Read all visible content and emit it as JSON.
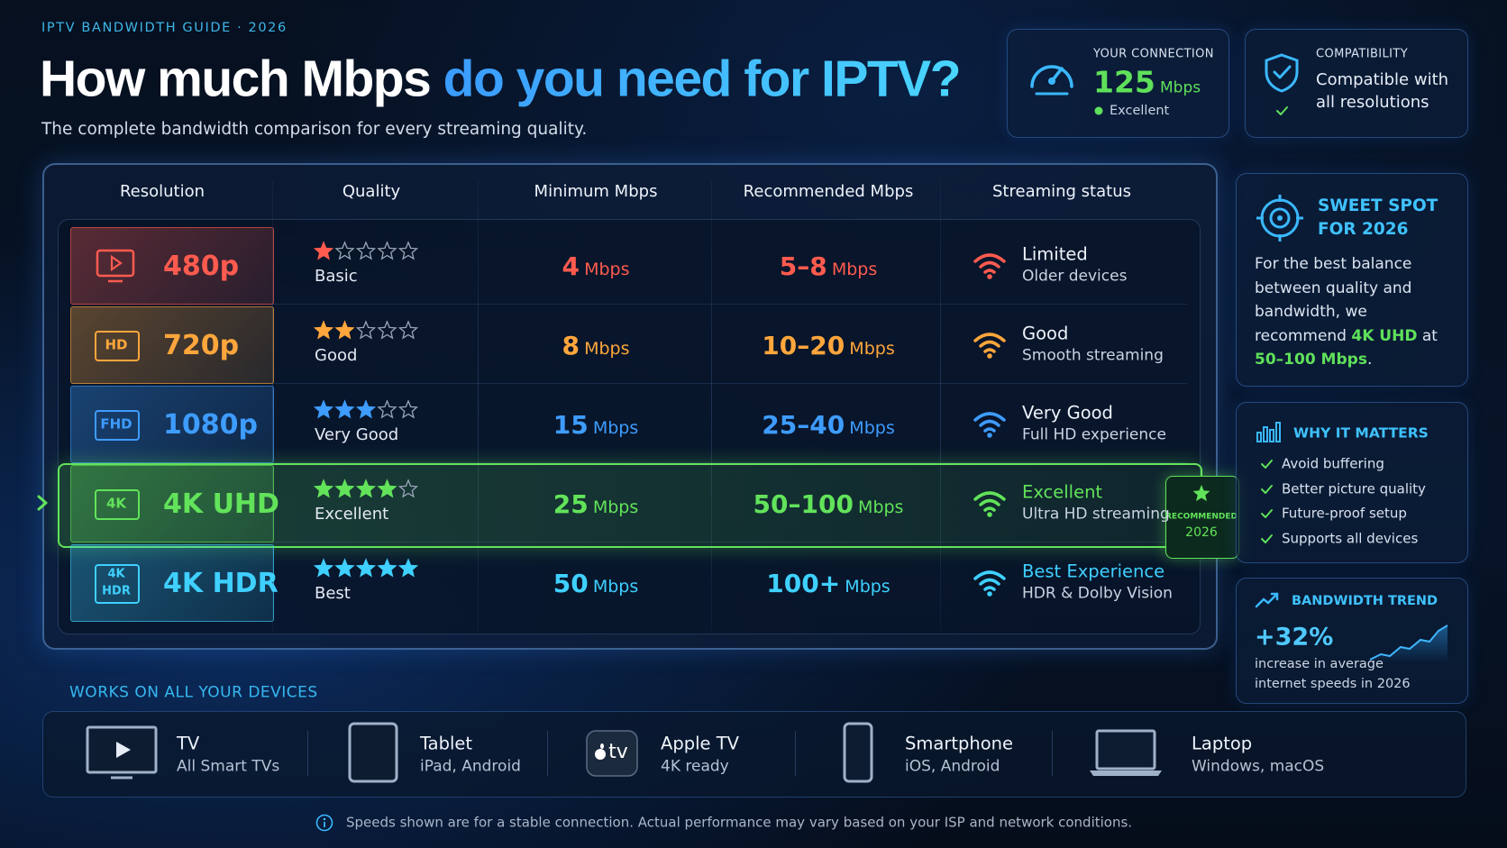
{
  "header": {
    "eyebrow": "IPTV BANDWIDTH GUIDE · 2026",
    "title_parts": [
      "How much Mbps",
      "do you need for IPTV?"
    ],
    "subtitle": "The complete bandwidth comparison for every streaming quality."
  },
  "connection": {
    "label": "YOUR CONNECTION",
    "speed": "125",
    "unit": "Mbps",
    "status": "Excellent"
  },
  "compatibility": {
    "label": "COMPATIBILITY",
    "lines": [
      "Compatible with",
      "all resolutions"
    ]
  },
  "table": {
    "columns": [
      "Resolution",
      "Quality",
      "Minimum Mbps",
      "Recommended Mbps",
      "Streaming status"
    ],
    "rows": [
      {
        "resolution": "480p",
        "quality": "Basic",
        "stars": 1,
        "minimum": "4",
        "minimum_unit": "Mbps",
        "recommended": "5–8",
        "recommended_unit": "Mbps",
        "status": "Limited",
        "status_detail": "Older devices",
        "color": "#ff5b4f"
      },
      {
        "resolution": "720p",
        "icon_label": [
          "HD"
        ],
        "quality": "Good",
        "stars": 2,
        "minimum": "8",
        "minimum_unit": "Mbps",
        "recommended": "10–20",
        "recommended_unit": "Mbps",
        "status": "Good",
        "status_detail": "Smooth streaming",
        "color": "#ffa63c"
      },
      {
        "resolution": "1080p",
        "icon_label": [
          "FHD"
        ],
        "quality": "Very Good",
        "stars": 3,
        "minimum": "15",
        "minimum_unit": "Mbps",
        "recommended": "25–40",
        "recommended_unit": "Mbps",
        "status": "Very Good",
        "status_detail": "Full HD experience",
        "color": "#3e9cff"
      },
      {
        "resolution": "4K UHD",
        "icon_label": [
          "4K"
        ],
        "quality": "Excellent",
        "stars": 4,
        "minimum": "25",
        "minimum_unit": "Mbps",
        "recommended": "50–100",
        "recommended_unit": "Mbps",
        "status": "Excellent",
        "status_detail": "Ultra HD streaming",
        "color": "#62e35a",
        "highlight": true,
        "status_accent": true
      },
      {
        "resolution": "4K HDR",
        "icon_label": [
          "4K",
          "HDR"
        ],
        "quality": "Best",
        "stars": 5,
        "minimum": "50",
        "minimum_unit": "Mbps",
        "recommended": "100+",
        "recommended_unit": "Mbps",
        "status": "Best Experience",
        "status_detail": "HDR & Dolby Vision",
        "color": "#3fd0ff",
        "status_accent": true
      }
    ],
    "badge": [
      "RECOMMENDED",
      "2026"
    ]
  },
  "sweet_spot": {
    "title": [
      "SWEET SPOT",
      "FOR 2026"
    ],
    "body": [
      "For the best balance between quality and bandwidth, we recommend ",
      "4K UHD",
      " at ",
      "50–100 Mbps",
      "."
    ]
  },
  "why_it_matters": {
    "title": "WHY IT MATTERS",
    "items": [
      "Avoid buffering",
      "Better picture quality",
      "Future-proof setup",
      "Supports all devices"
    ]
  },
  "trend": {
    "title": "BANDWIDTH TREND",
    "value": "+32%",
    "description": [
      "increase in average",
      "internet speeds in 2026"
    ]
  },
  "devices": {
    "title": "WORKS ON ALL YOUR DEVICES",
    "items": [
      {
        "name": "TV",
        "detail": "All Smart TVs"
      },
      {
        "name": "Tablet",
        "detail": "iPad, Android"
      },
      {
        "name": "Apple TV",
        "detail": "4K ready",
        "icon_text": "tv"
      },
      {
        "name": "Smartphone",
        "detail": "iOS, Android"
      },
      {
        "name": "Laptop",
        "detail": "Windows, macOS"
      }
    ]
  },
  "footnote": "Speeds shown are for a stable connection. Actual performance may vary based on your ISP and network conditions."
}
